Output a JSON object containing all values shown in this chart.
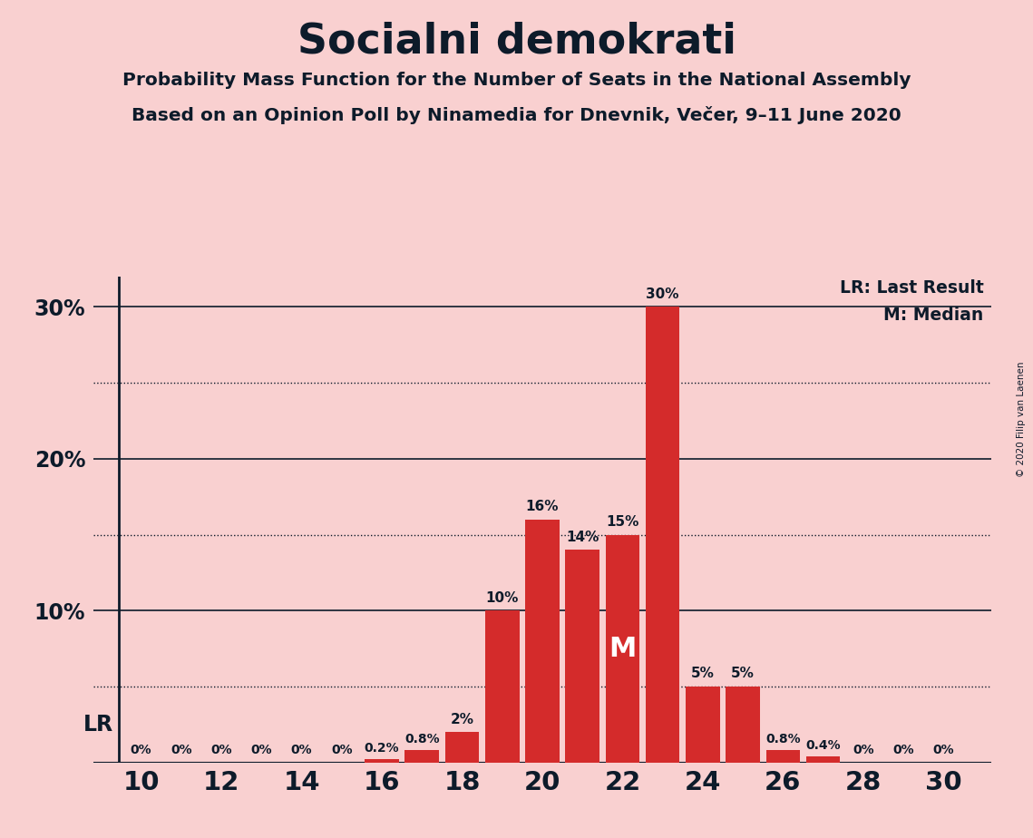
{
  "title": "Socialni demokrati",
  "subtitle1": "Probability Mass Function for the Number of Seats in the National Assembly",
  "subtitle2": "Based on an Opinion Poll by Ninamedia for Dnevnik, Večer, 9–11 June 2020",
  "copyright": "© 2020 Filip van Laenen",
  "seats": [
    10,
    11,
    12,
    13,
    14,
    15,
    16,
    17,
    18,
    19,
    20,
    21,
    22,
    23,
    24,
    25,
    26,
    27,
    28,
    29,
    30
  ],
  "probabilities": [
    0.0,
    0.0,
    0.0,
    0.0,
    0.0,
    0.0,
    0.2,
    0.8,
    2.0,
    10.0,
    16.0,
    14.0,
    15.0,
    30.0,
    5.0,
    5.0,
    0.8,
    0.4,
    0.0,
    0.0,
    0.0
  ],
  "bar_color": "#d42b2b",
  "background_color": "#f9d0d0",
  "text_color": "#0d1b2a",
  "median_seat": 22,
  "lr_seat": 10,
  "ylim_max": 32,
  "solid_yticks": [
    0,
    10,
    20,
    30
  ],
  "dotted_yticks": [
    5,
    15,
    25
  ],
  "legend_lr": "LR: Last Result",
  "legend_m": "M: Median"
}
